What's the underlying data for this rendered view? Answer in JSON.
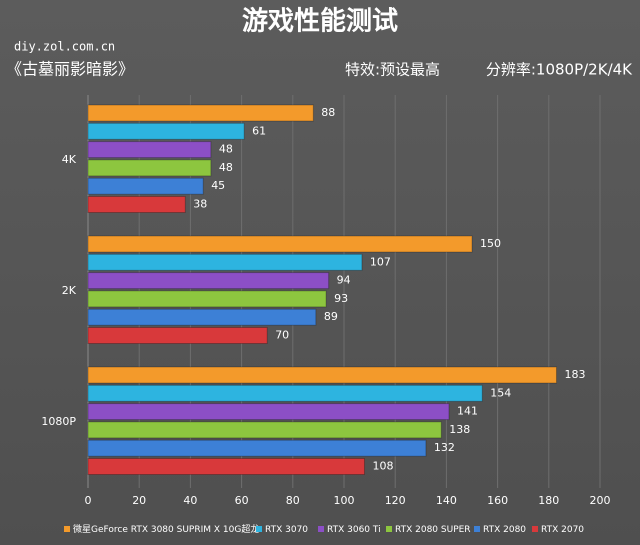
{
  "chart_data": {
    "type": "bar",
    "orientation": "horizontal",
    "title": "游戏性能测试",
    "source": "diy.zol.com.cn",
    "game": "《古墓丽影暗影》",
    "subtitle_left": "特效:预设最高",
    "subtitle_right": "分辨率:1080P/2K/4K",
    "categories": [
      "4K",
      "2K",
      "1080P"
    ],
    "series": [
      {
        "name": "微星GeForce RTX 3080 SUPRIM X 10G超龙",
        "color": "#f39a2b",
        "values": [
          88,
          150,
          183
        ]
      },
      {
        "name": "RTX 3070",
        "color": "#2db4e0",
        "values": [
          61,
          107,
          154
        ]
      },
      {
        "name": "RTX 3060 Ti",
        "color": "#8c4fc6",
        "values": [
          48,
          94,
          141
        ]
      },
      {
        "name": "RTX 2080 SUPER",
        "color": "#8dc63f",
        "values": [
          48,
          93,
          138
        ]
      },
      {
        "name": "RTX 2080",
        "color": "#3d80d6",
        "values": [
          45,
          89,
          132
        ]
      },
      {
        "name": "RTX 2070",
        "color": "#d8393b",
        "values": [
          38,
          70,
          108
        ]
      }
    ],
    "xlim": [
      0,
      200
    ],
    "xticks": [
      0,
      20,
      40,
      60,
      80,
      100,
      120,
      140,
      160,
      180,
      200
    ],
    "grid": true
  }
}
